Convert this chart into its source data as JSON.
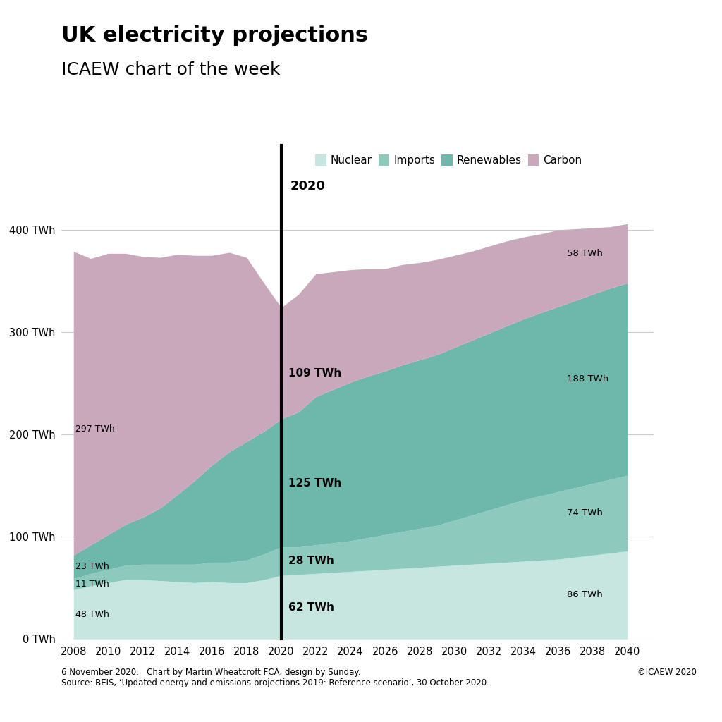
{
  "title_bold": "UK electricity projections",
  "title_light": "ICAEW chart of the week",
  "footer_left": "6 November 2020.   Chart by Martin Wheatcroft FCA, design by Sunday.\nSource: BEIS, ‘Updated energy and emissions projections 2019: Reference scenario’, 30 October 2020.",
  "footer_right": "©ICAEW 2020",
  "vline_label": "2020",
  "legend_labels": [
    "Nuclear",
    "Imports",
    "Renewables",
    "Carbon"
  ],
  "colors": {
    "nuclear": "#c8e6e0",
    "imports": "#8ec9be",
    "renewables": "#6db8aa",
    "carbon": "#c9a8bc",
    "background": "#ffffff",
    "vline": "#000000",
    "grid": "#cccccc"
  },
  "years": [
    2008,
    2009,
    2010,
    2011,
    2012,
    2013,
    2014,
    2015,
    2016,
    2017,
    2018,
    2019,
    2020,
    2021,
    2022,
    2023,
    2024,
    2025,
    2026,
    2027,
    2028,
    2029,
    2030,
    2031,
    2032,
    2033,
    2034,
    2035,
    2036,
    2037,
    2038,
    2039,
    2040
  ],
  "nuclear": [
    48,
    52,
    55,
    58,
    58,
    57,
    56,
    55,
    56,
    55,
    55,
    58,
    62,
    63,
    64,
    65,
    66,
    67,
    68,
    69,
    70,
    71,
    72,
    73,
    74,
    75,
    76,
    77,
    78,
    80,
    82,
    84,
    86
  ],
  "imports": [
    11,
    12,
    13,
    14,
    15,
    16,
    17,
    18,
    19,
    20,
    22,
    25,
    28,
    27,
    28,
    29,
    30,
    32,
    34,
    36,
    38,
    40,
    44,
    48,
    52,
    56,
    60,
    63,
    66,
    68,
    70,
    72,
    74
  ],
  "renewables": [
    23,
    28,
    34,
    40,
    46,
    55,
    68,
    82,
    95,
    108,
    116,
    120,
    125,
    132,
    145,
    150,
    155,
    158,
    160,
    163,
    165,
    167,
    169,
    171,
    173,
    175,
    177,
    179,
    181,
    183,
    185,
    187,
    188
  ],
  "carbon": [
    297,
    280,
    275,
    265,
    255,
    245,
    235,
    220,
    205,
    195,
    180,
    145,
    109,
    115,
    120,
    115,
    110,
    105,
    100,
    98,
    95,
    93,
    90,
    87,
    85,
    83,
    80,
    77,
    75,
    70,
    65,
    60,
    58
  ],
  "ylim": [
    0,
    420
  ],
  "yticks": [
    0,
    100,
    200,
    300,
    400
  ],
  "ytick_labels": [
    "0 TWh",
    "100 TWh",
    "200 TWh",
    "300 TWh",
    "400 TWh"
  ],
  "xlim_left": 2007.3,
  "xlim_right": 2041.5
}
